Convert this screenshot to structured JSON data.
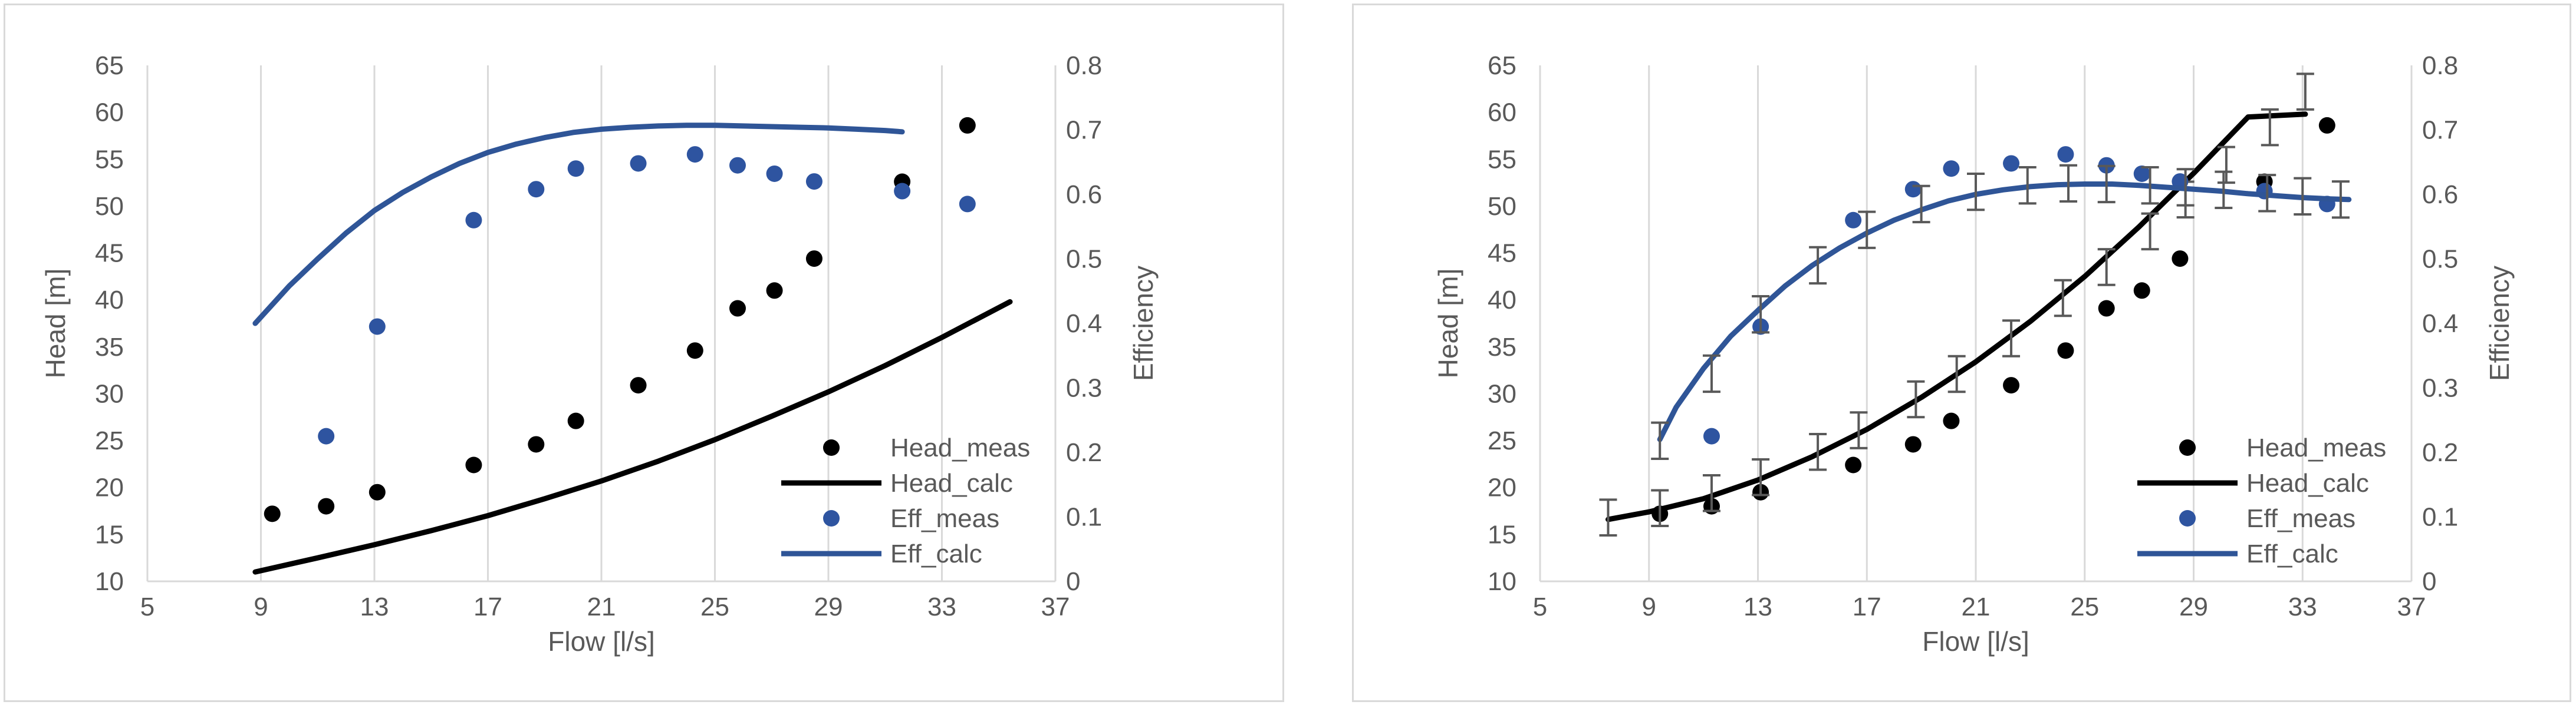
{
  "colors": {
    "head": "#000000",
    "eff": "#2f5597",
    "eff_dot": "#2e54a0",
    "grid": "#d9d9d9",
    "axis_text": "#595959",
    "error_bar": "#595959"
  },
  "chart_data": [
    {
      "type": "scatter",
      "title": "",
      "xlabel": "Flow [l/s]",
      "ylabel": "Head [m]",
      "y2label": "Efficiency",
      "xlim": [
        5,
        37
      ],
      "ylim": [
        10,
        65
      ],
      "y2lim": [
        0,
        0.8
      ],
      "xticks": [
        "5",
        "9",
        "13",
        "17",
        "21",
        "25",
        "29",
        "33",
        "37"
      ],
      "yticks": [
        "10",
        "15",
        "20",
        "25",
        "30",
        "35",
        "40",
        "45",
        "50",
        "55",
        "60",
        "65"
      ],
      "y2ticks": [
        "0",
        "0.1",
        "0.2",
        "0.3",
        "0.4",
        "0.5",
        "0.6",
        "0.7",
        "0.8"
      ],
      "grid": "vertical",
      "legend_position": "bottom-right",
      "legend": [
        "Head_meas",
        "Head_calc",
        "Eff_meas",
        "Eff_calc"
      ],
      "series": [
        {
          "name": "Head_meas",
          "kind": "markers",
          "axis": "left",
          "x": [
            9.4,
            11.3,
            13.1,
            16.5,
            18.7,
            20.1,
            22.3,
            24.3,
            25.8,
            27.1,
            28.5,
            31.6,
            33.9
          ],
          "y": [
            17.2,
            18.0,
            19.5,
            22.4,
            24.6,
            27.1,
            30.9,
            34.6,
            39.1,
            41.0,
            44.4,
            52.6,
            58.6
          ]
        },
        {
          "name": "Head_calc",
          "kind": "line",
          "axis": "left",
          "x": [
            8.8,
            11,
            13,
            15,
            17,
            19,
            21,
            23,
            25,
            27,
            29,
            31,
            33,
            35.4
          ],
          "y": [
            11.0,
            12.5,
            13.9,
            15.4,
            17.0,
            18.8,
            20.7,
            22.8,
            25.1,
            27.6,
            30.2,
            33.0,
            36.0,
            39.8
          ]
        },
        {
          "name": "Eff_meas",
          "kind": "markers",
          "axis": "right",
          "x": [
            11.3,
            13.1,
            16.5,
            18.7,
            20.1,
            22.3,
            24.3,
            25.8,
            27.1,
            28.5,
            31.6,
            33.9
          ],
          "y": [
            0.225,
            0.395,
            0.56,
            0.608,
            0.64,
            0.648,
            0.662,
            0.645,
            0.632,
            0.62,
            0.605,
            0.585
          ]
        },
        {
          "name": "Eff_calc",
          "kind": "line",
          "axis": "right",
          "x": [
            8.8,
            10,
            11,
            12,
            13,
            14,
            15,
            16,
            17,
            18,
            19,
            20,
            21,
            22,
            23,
            24,
            25,
            26,
            27,
            28,
            29,
            30,
            31,
            31.6
          ],
          "y": [
            0.4,
            0.458,
            0.5,
            0.54,
            0.575,
            0.603,
            0.627,
            0.648,
            0.665,
            0.678,
            0.688,
            0.696,
            0.701,
            0.704,
            0.706,
            0.707,
            0.707,
            0.706,
            0.705,
            0.704,
            0.703,
            0.701,
            0.699,
            0.697
          ]
        }
      ]
    },
    {
      "type": "scatter",
      "title": "",
      "xlabel": "Flow [l/s]",
      "ylabel": "Head [m]",
      "y2label": "Efficiency",
      "xlim": [
        5,
        37
      ],
      "ylim": [
        10,
        65
      ],
      "y2lim": [
        0,
        0.8
      ],
      "xticks": [
        "5",
        "9",
        "13",
        "17",
        "21",
        "25",
        "29",
        "33",
        "37"
      ],
      "yticks": [
        "10",
        "15",
        "20",
        "25",
        "30",
        "35",
        "40",
        "45",
        "50",
        "55",
        "60",
        "65"
      ],
      "y2ticks": [
        "0",
        "0.1",
        "0.2",
        "0.3",
        "0.4",
        "0.5",
        "0.6",
        "0.7",
        "0.8"
      ],
      "grid": "vertical",
      "legend_position": "bottom-right",
      "legend": [
        "Head_meas",
        "Head_calc",
        "Eff_meas",
        "Eff_calc"
      ],
      "series": [
        {
          "name": "Head_meas",
          "kind": "markers",
          "axis": "left",
          "x": [
            9.4,
            11.3,
            13.1,
            16.5,
            18.7,
            20.1,
            22.3,
            24.3,
            25.8,
            27.1,
            28.5,
            31.6,
            33.9
          ],
          "y": [
            17.2,
            18.0,
            19.5,
            22.4,
            24.6,
            27.1,
            30.9,
            34.6,
            39.1,
            41.0,
            44.4,
            52.6,
            58.6
          ]
        },
        {
          "name": "Head_calc",
          "kind": "line",
          "axis": "left",
          "x": [
            7.5,
            9,
            11,
            13,
            15,
            17,
            19,
            21,
            23,
            25,
            27,
            29,
            31,
            33.1
          ],
          "y": [
            16.6,
            17.4,
            18.8,
            20.8,
            23.3,
            26.2,
            29.6,
            33.4,
            37.7,
            42.5,
            47.8,
            53.5,
            59.5,
            59.8
          ],
          "error_bars_x": [
            7.5,
            9.4,
            11.3,
            13.1,
            15.2,
            16.7,
            18.8,
            20.3,
            22.3,
            24.2,
            25.8,
            27.4,
            28.7,
            30.2,
            31.8,
            33.1
          ],
          "error_bars_y": [
            16.8,
            17.8,
            19.4,
            21.1,
            23.8,
            26.1,
            29.4,
            32.1,
            35.9,
            40.2,
            43.5,
            47.3,
            50.7,
            54.4,
            58.4,
            62.2
          ],
          "error_bar_size": 1.9
        },
        {
          "name": "Eff_meas",
          "kind": "markers",
          "axis": "right",
          "x": [
            11.3,
            13.1,
            16.5,
            18.7,
            20.1,
            22.3,
            24.3,
            25.8,
            27.1,
            28.5,
            31.6,
            33.9
          ],
          "y": [
            0.225,
            0.395,
            0.56,
            0.608,
            0.64,
            0.648,
            0.662,
            0.645,
            0.632,
            0.62,
            0.605,
            0.585
          ]
        },
        {
          "name": "Eff_calc",
          "kind": "line",
          "axis": "right",
          "x": [
            9.4,
            10,
            11,
            12,
            13,
            14,
            15,
            16,
            17,
            18,
            19,
            20,
            21,
            22,
            23,
            24,
            25,
            26,
            27,
            28,
            29,
            30,
            31,
            32,
            33,
            34,
            34.7
          ],
          "y": [
            0.22,
            0.27,
            0.33,
            0.38,
            0.42,
            0.458,
            0.49,
            0.517,
            0.54,
            0.56,
            0.576,
            0.59,
            0.6,
            0.607,
            0.612,
            0.615,
            0.616,
            0.616,
            0.614,
            0.611,
            0.608,
            0.605,
            0.601,
            0.598,
            0.595,
            0.593,
            0.592
          ],
          "error_bars_x": [
            9.4,
            11.3,
            13.1,
            15.2,
            17.0,
            19.0,
            21.0,
            22.9,
            24.4,
            25.8,
            27.4,
            28.7,
            30.1,
            31.7,
            33.0,
            34.4
          ],
          "error_bars_y": [
            0.218,
            0.322,
            0.414,
            0.49,
            0.545,
            0.585,
            0.604,
            0.614,
            0.617,
            0.616,
            0.614,
            0.611,
            0.607,
            0.602,
            0.597,
            0.592
          ],
          "error_bar_size": 0.028
        }
      ]
    }
  ]
}
